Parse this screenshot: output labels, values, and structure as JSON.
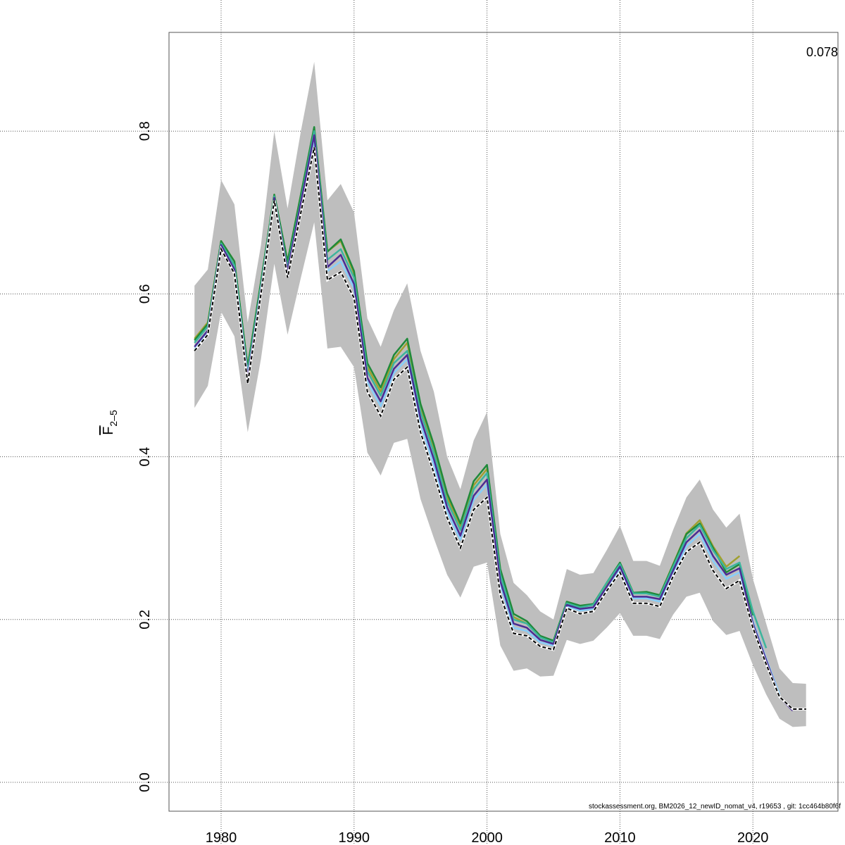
{
  "chart_data": {
    "type": "line",
    "ylabel_main": "F",
    "ylabel_sub": "2–5",
    "annotation": "0.078",
    "footer": "stockassessment.org, BM2026_12_newID_nomat_v4, r19653 , git: 1cc464b80f6f",
    "xlim": [
      1976,
      2025
    ],
    "ylim": [
      -0.03,
      0.92
    ],
    "xticks": [
      1980,
      1990,
      2000,
      2010,
      2020
    ],
    "xtick_labels": [
      "1980",
      "1990",
      "2000",
      "2010",
      "2020"
    ],
    "yticks": [
      0.0,
      0.2,
      0.4,
      0.6,
      0.8
    ],
    "ytick_labels": [
      "0.0",
      "0.2",
      "0.4",
      "0.6",
      "0.8"
    ],
    "grid": true,
    "start_year": 1978,
    "band": {
      "color": "#bebebe",
      "upper": [
        0.61,
        0.63,
        0.74,
        0.71,
        0.565,
        0.66,
        0.8,
        0.705,
        0.8,
        0.885,
        0.715,
        0.735,
        0.7,
        0.57,
        0.535,
        0.58,
        0.613,
        0.53,
        0.48,
        0.4,
        0.36,
        0.42,
        0.455,
        0.305,
        0.245,
        0.23,
        0.21,
        0.2,
        0.262,
        0.255,
        0.257,
        0.285,
        0.315,
        0.272,
        0.272,
        0.266,
        0.31,
        0.35,
        0.372,
        0.335,
        0.313,
        0.33,
        0.25,
        0.195,
        0.14,
        0.122,
        0.121
      ],
      "lower": [
        0.46,
        0.487,
        0.578,
        0.548,
        0.43,
        0.52,
        0.637,
        0.55,
        0.62,
        0.688,
        0.533,
        0.535,
        0.51,
        0.405,
        0.377,
        0.417,
        0.422,
        0.348,
        0.3,
        0.255,
        0.227,
        0.265,
        0.27,
        0.168,
        0.137,
        0.14,
        0.13,
        0.131,
        0.175,
        0.17,
        0.174,
        0.19,
        0.208,
        0.18,
        0.18,
        0.176,
        0.206,
        0.228,
        0.233,
        0.198,
        0.181,
        0.186,
        0.144,
        0.108,
        0.078,
        0.068,
        0.069
      ]
    },
    "series": [
      {
        "color": "#a0a030",
        "values": [
          0.545,
          0.565,
          0.665,
          0.64,
          0.51,
          0.615,
          0.722,
          0.64,
          0.722,
          0.802,
          0.652,
          0.665,
          0.625,
          0.51,
          0.48,
          0.52,
          0.54,
          0.46,
          0.41,
          0.35,
          0.315,
          0.365,
          0.385,
          0.258,
          0.203,
          0.195,
          0.178,
          0.172,
          0.22,
          0.215,
          0.218,
          0.243,
          0.268,
          0.232,
          0.232,
          0.23,
          0.268,
          0.306,
          0.322,
          0.29,
          0.265,
          0.278
        ]
      },
      {
        "color": "#1f8a3a",
        "values": [
          0.543,
          0.563,
          0.665,
          0.64,
          0.51,
          0.615,
          0.722,
          0.64,
          0.722,
          0.805,
          0.652,
          0.667,
          0.628,
          0.515,
          0.485,
          0.525,
          0.545,
          0.465,
          0.415,
          0.355,
          0.318,
          0.37,
          0.39,
          0.262,
          0.207,
          0.198,
          0.18,
          0.174,
          0.222,
          0.217,
          0.219,
          0.245,
          0.27,
          0.233,
          0.234,
          0.23,
          0.267,
          0.305,
          0.318,
          0.288,
          0.258,
          0.268,
          0.205
        ]
      },
      {
        "color": "#3cb59d",
        "values": [
          0.54,
          0.56,
          0.662,
          0.635,
          0.503,
          0.61,
          0.72,
          0.632,
          0.715,
          0.8,
          0.642,
          0.655,
          0.62,
          0.505,
          0.475,
          0.515,
          0.53,
          0.455,
          0.405,
          0.345,
          0.31,
          0.36,
          0.38,
          0.255,
          0.2,
          0.195,
          0.178,
          0.172,
          0.22,
          0.215,
          0.218,
          0.245,
          0.268,
          0.232,
          0.232,
          0.228,
          0.265,
          0.3,
          0.316,
          0.285,
          0.262,
          0.27,
          0.21,
          0.165
        ]
      },
      {
        "color": "#87cefa",
        "values": [
          0.532,
          0.552,
          0.657,
          0.627,
          0.5,
          0.602,
          0.715,
          0.625,
          0.708,
          0.79,
          0.628,
          0.64,
          0.607,
          0.492,
          0.462,
          0.503,
          0.52,
          0.44,
          0.39,
          0.332,
          0.298,
          0.347,
          0.366,
          0.243,
          0.19,
          0.186,
          0.172,
          0.168,
          0.216,
          0.211,
          0.213,
          0.238,
          0.262,
          0.226,
          0.226,
          0.222,
          0.257,
          0.29,
          0.305,
          0.272,
          0.25,
          0.258,
          0.198,
          0.152,
          0.108
        ]
      },
      {
        "color": "#4b2c93",
        "values": [
          0.535,
          0.555,
          0.66,
          0.63,
          0.497,
          0.605,
          0.718,
          0.628,
          0.712,
          0.795,
          0.633,
          0.648,
          0.612,
          0.497,
          0.468,
          0.508,
          0.525,
          0.447,
          0.397,
          0.338,
          0.303,
          0.352,
          0.372,
          0.247,
          0.195,
          0.19,
          0.175,
          0.17,
          0.218,
          0.213,
          0.215,
          0.24,
          0.265,
          0.228,
          0.228,
          0.225,
          0.26,
          0.295,
          0.31,
          0.278,
          0.255,
          0.263,
          0.195,
          0.15,
          0.105,
          0.088
        ]
      }
    ],
    "estimate": {
      "color": "#000000",
      "values": [
        0.53,
        0.55,
        0.655,
        0.625,
        0.49,
        0.6,
        0.715,
        0.62,
        0.7,
        0.78,
        0.617,
        0.627,
        0.595,
        0.48,
        0.45,
        0.495,
        0.51,
        0.43,
        0.38,
        0.325,
        0.288,
        0.335,
        0.35,
        0.23,
        0.183,
        0.18,
        0.167,
        0.163,
        0.214,
        0.207,
        0.21,
        0.235,
        0.258,
        0.22,
        0.22,
        0.216,
        0.253,
        0.283,
        0.295,
        0.26,
        0.238,
        0.248,
        0.19,
        0.145,
        0.105,
        0.09,
        0.09
      ]
    }
  }
}
